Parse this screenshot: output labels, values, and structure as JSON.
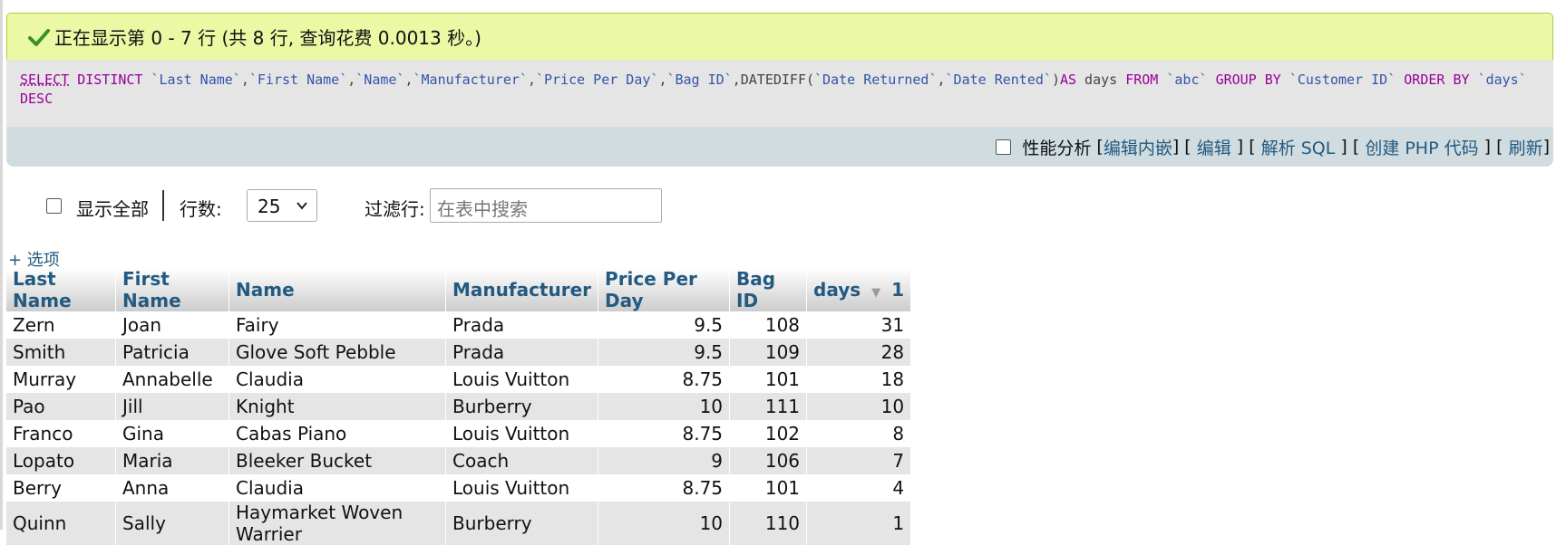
{
  "status": {
    "message": "正在显示第 0 - 7 行 (共 8 行, 查询花费 0.0013 秒。)"
  },
  "sql": {
    "line1": [
      {
        "t": "SELECT",
        "c": "kw-first"
      },
      {
        "t": " ",
        "c": "plain"
      },
      {
        "t": "DISTINCT",
        "c": "kw"
      },
      {
        "t": " ",
        "c": "plain"
      },
      {
        "t": "`Last Name`",
        "c": "bq"
      },
      {
        "t": ",",
        "c": "plain"
      },
      {
        "t": "`First Name`",
        "c": "bq"
      },
      {
        "t": ",",
        "c": "plain"
      },
      {
        "t": "`Name`",
        "c": "bq"
      },
      {
        "t": ",",
        "c": "plain"
      },
      {
        "t": "`Manufacturer`",
        "c": "bq"
      },
      {
        "t": ",",
        "c": "plain"
      },
      {
        "t": "`Price Per Day`",
        "c": "bq"
      },
      {
        "t": ",",
        "c": "plain"
      },
      {
        "t": "`Bag ID`",
        "c": "bq"
      },
      {
        "t": ",DATEDIFF(",
        "c": "fn"
      },
      {
        "t": "`Date Returned`",
        "c": "bq"
      },
      {
        "t": ",",
        "c": "plain"
      },
      {
        "t": "`Date Rented`",
        "c": "bq"
      },
      {
        "t": ")",
        "c": "plain"
      },
      {
        "t": "AS",
        "c": "kw"
      },
      {
        "t": " days ",
        "c": "plain"
      },
      {
        "t": "FROM",
        "c": "kw"
      },
      {
        "t": " ",
        "c": "plain"
      },
      {
        "t": "`abc`",
        "c": "bq"
      },
      {
        "t": " ",
        "c": "plain"
      },
      {
        "t": "GROUP BY",
        "c": "kw"
      },
      {
        "t": " ",
        "c": "plain"
      },
      {
        "t": "`Customer ID`",
        "c": "bq"
      },
      {
        "t": " ",
        "c": "plain"
      },
      {
        "t": "ORDER BY",
        "c": "kw"
      },
      {
        "t": " ",
        "c": "plain"
      },
      {
        "t": "`days`",
        "c": "bq"
      }
    ],
    "line2": [
      {
        "t": "DESC",
        "c": "kw"
      }
    ]
  },
  "tools": {
    "profiling_label": "性能分析",
    "edit_inline": "编辑内嵌",
    "edit": "编辑",
    "explain_sql": "解析 SQL",
    "create_php": "创建 PHP 代码",
    "refresh": "刷新"
  },
  "nav": {
    "show_all": "显示全部",
    "rows_label": "行数:",
    "rows_value": "25",
    "filter_label": "过滤行:",
    "filter_placeholder": "在表中搜索"
  },
  "options_link": "+ 选项",
  "table": {
    "headers": [
      "Last Name",
      "First Name",
      "Name",
      "Manufacturer",
      "Price Per Day",
      "Bag ID",
      "days"
    ],
    "sort_index": "1",
    "rows": [
      [
        "Zern",
        "Joan",
        "Fairy",
        "Prada",
        "9.5",
        "108",
        "31"
      ],
      [
        "Smith",
        "Patricia",
        "Glove Soft Pebble",
        "Prada",
        "9.5",
        "109",
        "28"
      ],
      [
        "Murray",
        "Annabelle",
        "Claudia",
        "Louis Vuitton",
        "8.75",
        "101",
        "18"
      ],
      [
        "Pao",
        "Jill",
        "Knight",
        "Burberry",
        "10",
        "111",
        "10"
      ],
      [
        "Franco",
        "Gina",
        "Cabas Piano",
        "Louis Vuitton",
        "8.75",
        "102",
        "8"
      ],
      [
        "Lopato",
        "Maria",
        "Bleeker Bucket",
        "Coach",
        "9",
        "106",
        "7"
      ],
      [
        "Berry",
        "Anna",
        "Claudia",
        "Louis Vuitton",
        "8.75",
        "101",
        "4"
      ],
      [
        "Quinn",
        "Sally",
        "Haymarket Woven Warrier",
        "Burberry",
        "10",
        "110",
        "1"
      ]
    ]
  }
}
